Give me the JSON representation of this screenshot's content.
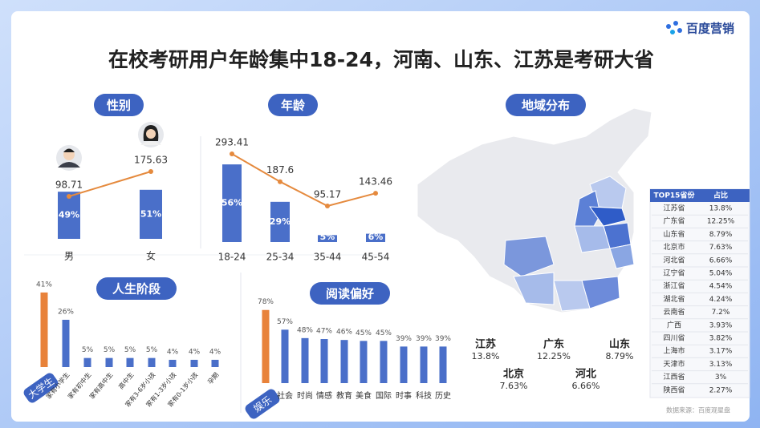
{
  "header": {
    "title": "在校考研用户年龄集中18-24，河南、山东、江苏是考研大省",
    "logo": "百度营销"
  },
  "chart_data": [
    {
      "type": "combo",
      "title": "性别",
      "categories": [
        "男",
        "女"
      ],
      "series": [
        {
          "type": "bar",
          "color": "#4a6fc9",
          "values": [
            49,
            51
          ],
          "value_labels": [
            "49%",
            "51%"
          ]
        },
        {
          "type": "line",
          "color": "#e58a3e",
          "values": [
            98.71,
            175.63
          ]
        }
      ]
    },
    {
      "type": "combo",
      "title": "年龄",
      "categories": [
        "18-24",
        "25-34",
        "35-44",
        "45-54"
      ],
      "series": [
        {
          "type": "bar",
          "color": "#4a6fc9",
          "values": [
            56,
            29,
            5,
            6
          ],
          "value_labels": [
            "56%",
            "29%",
            "5%",
            "6%"
          ]
        },
        {
          "type": "line",
          "color": "#e58a3e",
          "values": [
            293.41,
            187.6,
            95.17,
            143.46
          ]
        }
      ]
    },
    {
      "type": "bar",
      "title": "人生阶段",
      "categories": [
        "大学生",
        "家有小学生",
        "家有初中生",
        "家有高中生",
        "高中生",
        "家有3-6岁小孩",
        "家有1-3岁小孩",
        "家有0-1岁小孩",
        "孕期"
      ],
      "values": [
        41,
        26,
        5,
        5,
        5,
        5,
        4,
        4,
        4
      ],
      "value_labels": [
        "41%",
        "26%",
        "5%",
        "5%",
        "5%",
        "5%",
        "4%",
        "4%",
        "4%"
      ],
      "colors": [
        "#e8823a",
        "#4a6fc9",
        "#4a6fc9",
        "#4a6fc9",
        "#4a6fc9",
        "#4a6fc9",
        "#4a6fc9",
        "#4a6fc9",
        "#4a6fc9"
      ]
    },
    {
      "type": "bar",
      "title": "阅读偏好",
      "categories": [
        "娱乐",
        "社会",
        "时尚",
        "情感",
        "教育",
        "美食",
        "国际",
        "时事",
        "科技",
        "历史"
      ],
      "values": [
        78,
        57,
        48,
        47,
        46,
        45,
        45,
        39,
        39,
        39
      ],
      "value_labels": [
        "78%",
        "57%",
        "48%",
        "47%",
        "46%",
        "45%",
        "45%",
        "39%",
        "39%",
        "39%"
      ],
      "colors": [
        "#e8823a",
        "#4a6fc9",
        "#4a6fc9",
        "#4a6fc9",
        "#4a6fc9",
        "#4a6fc9",
        "#4a6fc9",
        "#4a6fc9",
        "#4a6fc9",
        "#4a6fc9"
      ]
    }
  ],
  "map": {
    "title": "地域分布",
    "labels": [
      {
        "name": "江苏",
        "share": "13.8%"
      },
      {
        "name": "广东",
        "share": "12.25%"
      },
      {
        "name": "山东",
        "share": "8.79%"
      },
      {
        "name": "北京",
        "share": "7.63%"
      },
      {
        "name": "河北",
        "share": "6.66%"
      }
    ]
  },
  "table": {
    "header": [
      "TOP15省份",
      "占比"
    ],
    "rows": [
      [
        "江苏省",
        "13.8%"
      ],
      [
        "广东省",
        "12.25%"
      ],
      [
        "山东省",
        "8.79%"
      ],
      [
        "北京市",
        "7.63%"
      ],
      [
        "河北省",
        "6.66%"
      ],
      [
        "辽宁省",
        "5.04%"
      ],
      [
        "浙江省",
        "4.54%"
      ],
      [
        "湖北省",
        "4.24%"
      ],
      [
        "云南省",
        "7.2%"
      ],
      [
        "广西",
        "3.93%"
      ],
      [
        "四川省",
        "3.82%"
      ],
      [
        "上海市",
        "3.17%"
      ],
      [
        "天津市",
        "3.13%"
      ],
      [
        "江西省",
        "3%"
      ],
      [
        "陕西省",
        "2.27%"
      ]
    ]
  },
  "source": "数据来源：百度观星盘"
}
